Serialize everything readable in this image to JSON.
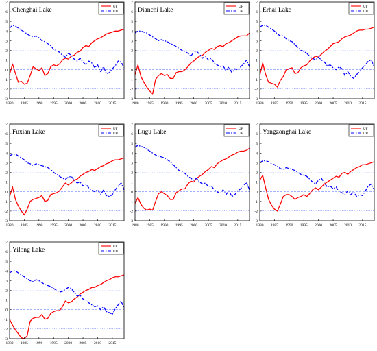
{
  "chart_data": [
    {
      "type": "line",
      "title": "Chenghai Lake",
      "xlim": [
        1980,
        2019
      ],
      "ylim": [
        -3,
        7
      ],
      "xticks": [
        "1980",
        "1985",
        "1990",
        "1995",
        "2000",
        "2005",
        "2010",
        "2015"
      ],
      "yticks": [
        "-3",
        "-2",
        "-1",
        "0",
        "1",
        "2",
        "3",
        "4",
        "5",
        "6",
        "7"
      ],
      "reference_lines": [
        1.96,
        0,
        -1.96
      ],
      "legend": "top-right",
      "x": [
        1980,
        1981,
        1982,
        1983,
        1984,
        1985,
        1986,
        1987,
        1988,
        1989,
        1990,
        1991,
        1992,
        1993,
        1994,
        1995,
        1996,
        1997,
        1998,
        1999,
        2000,
        2001,
        2002,
        2003,
        2004,
        2005,
        2006,
        2007,
        2008,
        2009,
        2010,
        2011,
        2012,
        2013,
        2014,
        2015,
        2016,
        2017,
        2018,
        2019
      ],
      "series": [
        {
          "name": "UF",
          "color": "#ff0000",
          "style": "solid",
          "values": [
            -0.5,
            0.6,
            -0.4,
            -1.3,
            -1.2,
            -1.5,
            -1.4,
            -0.6,
            0.3,
            0.1,
            -0.1,
            0.2,
            -0.6,
            -0.4,
            0.3,
            0.5,
            0.4,
            0.6,
            1.0,
            1.2,
            1.1,
            1.4,
            1.5,
            1.8,
            1.9,
            2.3,
            2.5,
            2.4,
            2.8,
            3.0,
            3.2,
            3.3,
            3.5,
            3.7,
            3.8,
            3.9,
            4.0,
            4.0,
            4.1,
            4.2
          ]
        },
        {
          "name": "UB",
          "color": "#0000ff",
          "style": "dashdot",
          "values": [
            4.3,
            4.6,
            4.5,
            4.3,
            4.1,
            3.9,
            3.7,
            3.5,
            3.4,
            3.5,
            3.3,
            3.0,
            2.9,
            2.7,
            2.5,
            2.1,
            2.0,
            1.8,
            1.5,
            1.3,
            1.7,
            1.5,
            1.1,
            0.9,
            1.2,
            0.8,
            0.5,
            0.9,
            0.7,
            0.2,
            0.5,
            -0.2,
            0.3,
            -0.4,
            -0.3,
            0.1,
            0.4,
            0.9,
            0.8,
            0.2
          ]
        }
      ]
    },
    {
      "type": "line",
      "title": "Dianchi Lake",
      "xlim": [
        1980,
        2019
      ],
      "ylim": [
        -3,
        7
      ],
      "xticks": [
        "1980",
        "1985",
        "1990",
        "1995",
        "2000",
        "2005",
        "2010",
        "2015"
      ],
      "yticks": [
        "-3",
        "-2",
        "-1",
        "0",
        "1",
        "2",
        "3",
        "4",
        "5",
        "6",
        "7"
      ],
      "reference_lines": [
        1.96,
        0,
        -1.96
      ],
      "legend": "top-right",
      "x": [
        1980,
        1981,
        1982,
        1983,
        1984,
        1985,
        1986,
        1987,
        1988,
        1989,
        1990,
        1991,
        1992,
        1993,
        1994,
        1995,
        1996,
        1997,
        1998,
        1999,
        2000,
        2001,
        2002,
        2003,
        2004,
        2005,
        2006,
        2007,
        2008,
        2009,
        2010,
        2011,
        2012,
        2013,
        2014,
        2015,
        2016,
        2017,
        2018,
        2019
      ],
      "series": [
        {
          "name": "UF",
          "color": "#ff0000",
          "style": "solid",
          "values": [
            -0.5,
            0.5,
            -0.7,
            -1.3,
            -1.8,
            -2.2,
            -2.5,
            -1.0,
            -0.6,
            -0.4,
            -0.6,
            -0.5,
            -0.9,
            -0.9,
            -0.3,
            -0.2,
            -0.2,
            0.0,
            0.3,
            0.7,
            0.9,
            1.2,
            1.4,
            1.5,
            1.8,
            2.0,
            2.2,
            2.1,
            2.4,
            2.5,
            2.4,
            2.7,
            2.8,
            3.0,
            3.2,
            3.4,
            3.5,
            3.5,
            3.5,
            3.8
          ]
        },
        {
          "name": "UB",
          "color": "#0000ff",
          "style": "dashdot",
          "values": [
            3.8,
            4.0,
            4.0,
            3.9,
            3.8,
            3.6,
            3.4,
            3.2,
            3.0,
            3.1,
            3.0,
            2.9,
            2.7,
            2.6,
            2.4,
            2.2,
            2.0,
            1.9,
            1.7,
            1.4,
            1.8,
            1.9,
            1.6,
            1.2,
            1.4,
            1.0,
            1.2,
            0.7,
            0.5,
            0.3,
            0.4,
            -0.1,
            0.3,
            -0.3,
            0.1,
            0.0,
            0.3,
            0.6,
            1.0,
            0.3
          ]
        }
      ]
    },
    {
      "type": "line",
      "title": "Erhai Lake",
      "xlim": [
        1980,
        2019
      ],
      "ylim": [
        -3,
        7
      ],
      "xticks": [
        "1980",
        "1985",
        "1990",
        "1995",
        "2000",
        "2005",
        "2010",
        "2015"
      ],
      "yticks": [
        "-3",
        "-2",
        "-1",
        "0",
        "1",
        "2",
        "3",
        "4",
        "5",
        "6",
        "7"
      ],
      "reference_lines": [
        1.96,
        0,
        -1.96
      ],
      "legend": "top-right",
      "x": [
        1980,
        1981,
        1982,
        1983,
        1984,
        1985,
        1986,
        1987,
        1988,
        1989,
        1990,
        1991,
        1992,
        1993,
        1994,
        1995,
        1996,
        1997,
        1998,
        1999,
        2000,
        2001,
        2002,
        2003,
        2004,
        2005,
        2006,
        2007,
        2008,
        2009,
        2010,
        2011,
        2012,
        2013,
        2014,
        2015,
        2016,
        2017,
        2018,
        2019
      ],
      "series": [
        {
          "name": "UF",
          "color": "#ff0000",
          "style": "solid",
          "values": [
            -0.6,
            0.7,
            -0.5,
            -1.3,
            -1.4,
            -1.5,
            -1.8,
            -1.1,
            -0.7,
            0.0,
            0.1,
            0.2,
            -0.4,
            -0.3,
            0.2,
            0.4,
            0.5,
            0.9,
            1.2,
            1.4,
            1.3,
            1.6,
            1.9,
            2.1,
            2.4,
            2.7,
            2.8,
            2.9,
            3.2,
            3.4,
            3.5,
            3.6,
            3.8,
            4.0,
            4.1,
            4.1,
            4.2,
            4.2,
            4.3,
            4.4
          ]
        },
        {
          "name": "UB",
          "color": "#0000ff",
          "style": "dashdot",
          "values": [
            4.4,
            4.6,
            4.6,
            4.4,
            4.2,
            4.0,
            3.7,
            3.5,
            3.5,
            3.2,
            3.0,
            2.9,
            2.6,
            2.3,
            2.0,
            1.9,
            1.7,
            1.4,
            1.2,
            1.0,
            1.3,
            1.0,
            0.8,
            0.4,
            0.5,
            0.2,
            0.0,
            0.3,
            0.1,
            -0.6,
            -0.2,
            -0.7,
            -0.9,
            -0.5,
            -0.2,
            0.2,
            0.5,
            0.9,
            1.0,
            0.3
          ]
        }
      ]
    },
    {
      "type": "line",
      "title": "Fuxian Lake",
      "xlim": [
        1980,
        2019
      ],
      "ylim": [
        -3,
        7
      ],
      "xticks": [
        "1980",
        "1985",
        "1990",
        "1995",
        "2000",
        "2005",
        "2010",
        "2015"
      ],
      "yticks": [
        "-3",
        "-2",
        "-1",
        "0",
        "1",
        "2",
        "3",
        "4",
        "5",
        "6",
        "7"
      ],
      "reference_lines": [
        1.96,
        0,
        -1.96
      ],
      "legend": "top-right",
      "x": [
        1980,
        1981,
        1982,
        1983,
        1984,
        1985,
        1986,
        1987,
        1988,
        1989,
        1990,
        1991,
        1992,
        1993,
        1994,
        1995,
        1996,
        1997,
        1998,
        1999,
        2000,
        2001,
        2002,
        2003,
        2004,
        2005,
        2006,
        2007,
        2008,
        2009,
        2010,
        2011,
        2012,
        2013,
        2014,
        2015,
        2016,
        2017,
        2018,
        2019
      ],
      "series": [
        {
          "name": "UF",
          "color": "#ff0000",
          "style": "solid",
          "values": [
            -0.5,
            0.5,
            -0.8,
            -1.5,
            -2.0,
            -2.4,
            -1.8,
            -1.0,
            -0.8,
            -0.7,
            -0.6,
            -0.4,
            -1.0,
            -0.9,
            -0.3,
            -0.2,
            -0.1,
            0.1,
            0.5,
            0.9,
            0.7,
            0.9,
            1.2,
            1.3,
            1.6,
            1.8,
            2.0,
            2.1,
            2.3,
            2.2,
            2.4,
            2.6,
            2.7,
            2.9,
            3.0,
            3.2,
            3.3,
            3.3,
            3.4,
            3.5
          ]
        },
        {
          "name": "UB",
          "color": "#0000ff",
          "style": "dashdot",
          "values": [
            3.7,
            3.9,
            3.9,
            3.7,
            3.5,
            3.3,
            3.0,
            2.9,
            2.7,
            2.9,
            2.8,
            2.7,
            2.6,
            2.5,
            2.3,
            2.0,
            1.8,
            1.6,
            1.4,
            1.3,
            1.5,
            1.6,
            1.2,
            0.9,
            1.0,
            0.6,
            0.8,
            0.4,
            0.2,
            0.0,
            0.2,
            -0.3,
            0.2,
            -0.4,
            -0.5,
            -0.3,
            0.2,
            0.6,
            0.9,
            0.2
          ]
        }
      ]
    },
    {
      "type": "line",
      "title": "Lugu Lake",
      "xlim": [
        1980,
        2019
      ],
      "ylim": [
        -3,
        7
      ],
      "xticks": [
        "1980",
        "1985",
        "1990",
        "1995",
        "2000",
        "2005",
        "2010",
        "2015"
      ],
      "yticks": [
        "-3",
        "-2",
        "-1",
        "0",
        "1",
        "2",
        "3",
        "4",
        "5",
        "6",
        "7"
      ],
      "reference_lines": [
        1.96,
        0,
        -1.96
      ],
      "legend": "top-right",
      "x": [
        1980,
        1981,
        1982,
        1983,
        1984,
        1985,
        1986,
        1987,
        1988,
        1989,
        1990,
        1991,
        1992,
        1993,
        1994,
        1995,
        1996,
        1997,
        1998,
        1999,
        2000,
        2001,
        2002,
        2003,
        2004,
        2005,
        2006,
        2007,
        2008,
        2009,
        2010,
        2011,
        2012,
        2013,
        2014,
        2015,
        2016,
        2017,
        2018,
        2019
      ],
      "series": [
        {
          "name": "UF",
          "color": "#ff0000",
          "style": "solid",
          "values": [
            -1.2,
            -0.6,
            -1.3,
            -1.7,
            -1.9,
            -1.8,
            -1.9,
            -1.0,
            -0.2,
            0.0,
            -0.2,
            -0.4,
            -0.8,
            -0.8,
            -0.1,
            0.1,
            0.3,
            0.3,
            0.8,
            1.1,
            1.0,
            1.4,
            1.6,
            1.8,
            2.1,
            2.3,
            2.6,
            2.5,
            2.9,
            3.1,
            3.3,
            3.4,
            3.6,
            3.8,
            3.9,
            4.1,
            4.2,
            4.2,
            4.3,
            4.5
          ]
        },
        {
          "name": "UB",
          "color": "#0000ff",
          "style": "dashdot",
          "values": [
            4.6,
            4.8,
            4.7,
            4.6,
            4.4,
            4.2,
            4.0,
            3.8,
            3.7,
            3.6,
            3.5,
            3.3,
            3.1,
            2.8,
            2.5,
            2.2,
            2.1,
            1.9,
            1.6,
            1.4,
            1.2,
            1.4,
            1.0,
            0.8,
            0.9,
            0.5,
            0.6,
            0.2,
            0.0,
            -0.2,
            0.2,
            -0.3,
            0.1,
            -0.5,
            -0.3,
            0.1,
            0.3,
            0.7,
            0.9,
            0.2
          ]
        }
      ]
    },
    {
      "type": "line",
      "title": "Yangzonghai Lake",
      "xlim": [
        1980,
        2019
      ],
      "ylim": [
        -3,
        7
      ],
      "xticks": [
        "1980",
        "1985",
        "1990",
        "1995",
        "2000",
        "2005",
        "2010",
        "2015"
      ],
      "yticks": [
        "-3",
        "-2",
        "-1",
        "0",
        "1",
        "2",
        "3",
        "4",
        "5",
        "6",
        "7"
      ],
      "reference_lines": [
        1.96,
        0,
        -1.96
      ],
      "legend": "top-right",
      "x": [
        1980,
        1981,
        1982,
        1983,
        1984,
        1985,
        1986,
        1987,
        1988,
        1989,
        1990,
        1991,
        1992,
        1993,
        1994,
        1995,
        1996,
        1997,
        1998,
        1999,
        2000,
        2001,
        2002,
        2003,
        2004,
        2005,
        2006,
        2007,
        2008,
        2009,
        2010,
        2011,
        2012,
        2013,
        2014,
        2015,
        2016,
        2017,
        2018,
        2019
      ],
      "series": [
        {
          "name": "UF",
          "color": "#ff0000",
          "style": "solid",
          "values": [
            1.2,
            1.7,
            0.4,
            -0.8,
            -1.4,
            -1.8,
            -2.0,
            -1.3,
            -0.5,
            -0.3,
            -0.3,
            -0.5,
            -0.8,
            -0.6,
            -0.5,
            -0.3,
            -0.5,
            -0.2,
            0.2,
            0.4,
            0.2,
            0.5,
            0.8,
            1.0,
            1.2,
            1.4,
            1.6,
            1.5,
            1.9,
            2.0,
            1.8,
            2.1,
            2.3,
            2.5,
            2.6,
            2.8,
            2.8,
            2.9,
            3.0,
            3.1
          ]
        },
        {
          "name": "UB",
          "color": "#0000ff",
          "style": "dashdot",
          "values": [
            3.0,
            3.2,
            3.2,
            3.1,
            2.9,
            2.8,
            2.6,
            2.4,
            2.3,
            2.5,
            2.4,
            2.3,
            2.2,
            2.0,
            1.8,
            1.7,
            1.6,
            1.3,
            1.0,
            0.8,
            1.2,
            1.4,
            0.9,
            0.5,
            0.6,
            0.3,
            0.5,
            0.0,
            -0.1,
            -0.3,
            0.1,
            -0.3,
            0.0,
            -0.5,
            -0.3,
            -0.4,
            0.1,
            0.6,
            0.8,
            0.2
          ]
        }
      ]
    },
    {
      "type": "line",
      "title": "Yilong Lake",
      "xlim": [
        1980,
        2019
      ],
      "ylim": [
        -3,
        7
      ],
      "xticks": [
        "1980",
        "1985",
        "1990",
        "1995",
        "2000",
        "2005",
        "2010",
        "2015"
      ],
      "yticks": [
        "-3",
        "-2",
        "-1",
        "0",
        "1",
        "2",
        "3",
        "4",
        "5",
        "6",
        "7"
      ],
      "reference_lines": [
        1.96,
        0,
        -1.96
      ],
      "legend": "top-right",
      "x": [
        1980,
        1981,
        1982,
        1983,
        1984,
        1985,
        1986,
        1987,
        1988,
        1989,
        1990,
        1991,
        1992,
        1993,
        1994,
        1995,
        1996,
        1997,
        1998,
        1999,
        2000,
        2001,
        2002,
        2003,
        2004,
        2005,
        2006,
        2007,
        2008,
        2009,
        2010,
        2011,
        2012,
        2013,
        2014,
        2015,
        2016,
        2017,
        2018,
        2019
      ],
      "series": [
        {
          "name": "UF",
          "color": "#ff0000",
          "style": "solid",
          "values": [
            -1.0,
            -1.6,
            -2.1,
            -2.5,
            -2.9,
            -3.0,
            -2.7,
            -1.2,
            -0.9,
            -0.8,
            -0.8,
            -0.5,
            -1.0,
            -0.9,
            -0.4,
            -0.2,
            -0.1,
            -0.1,
            0.3,
            0.9,
            0.7,
            0.8,
            1.1,
            1.3,
            1.6,
            1.8,
            2.0,
            2.1,
            2.3,
            2.3,
            2.5,
            2.6,
            2.8,
            3.0,
            3.1,
            3.3,
            3.4,
            3.4,
            3.5,
            3.6
          ]
        },
        {
          "name": "UB",
          "color": "#0000ff",
          "style": "dashdot",
          "values": [
            3.8,
            4.0,
            4.0,
            3.8,
            3.6,
            3.4,
            3.2,
            3.0,
            2.9,
            3.1,
            3.0,
            2.8,
            2.6,
            2.5,
            2.4,
            2.2,
            2.0,
            1.8,
            1.9,
            2.1,
            2.3,
            2.2,
            1.8,
            1.4,
            1.5,
            1.1,
            1.0,
            0.7,
            0.5,
            0.3,
            0.4,
            0.0,
            0.3,
            -0.2,
            -0.3,
            -0.5,
            0.1,
            0.5,
            0.9,
            0.1
          ]
        }
      ]
    }
  ]
}
